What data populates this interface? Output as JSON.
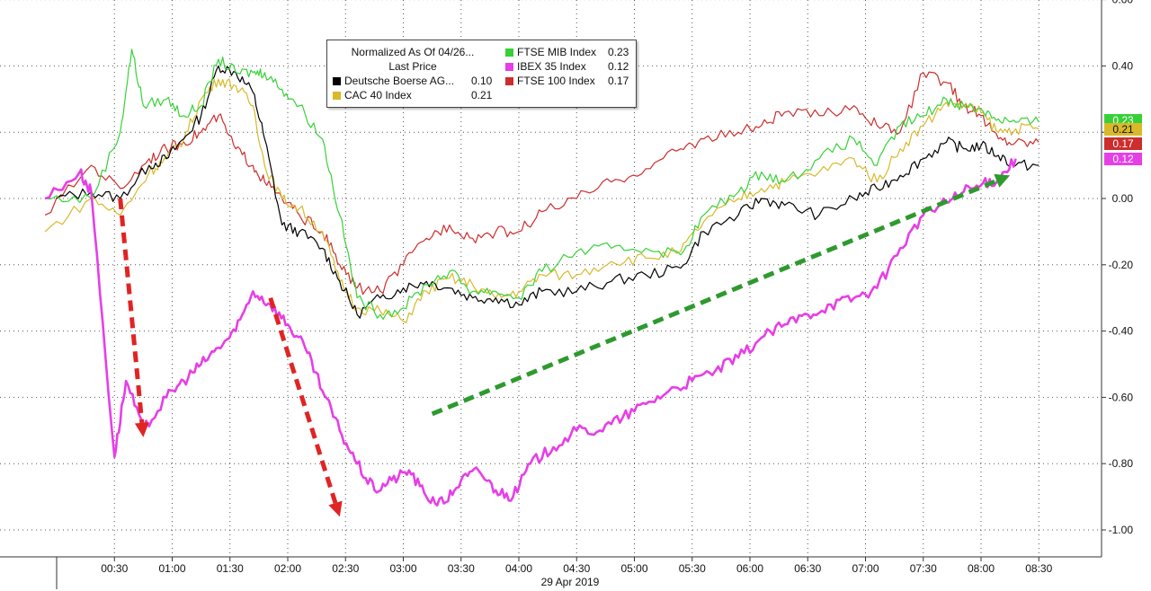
{
  "chart_data": {
    "type": "line",
    "date_label": "29 Apr 2019",
    "x_ticks": [
      "00:30",
      "01:00",
      "01:30",
      "02:00",
      "02:30",
      "03:00",
      "03:30",
      "04:00",
      "04:30",
      "05:00",
      "05:30",
      "06:00",
      "06:30",
      "07:00",
      "07:30",
      "08:00",
      "08:30"
    ],
    "y_ticks": [
      "0.60",
      "0.40",
      "0.20",
      "0.00",
      "-0.20",
      "-0.40",
      "-0.60",
      "-0.80",
      "-1.00"
    ],
    "ylim": [
      -1.1,
      0.6
    ],
    "grid": true,
    "legend": {
      "title": "Normalized As Of 04/26...",
      "subtitle": "Last Price",
      "placement": "top-center"
    },
    "series": [
      {
        "name": "Deutsche Boerse AG...",
        "color": "#000000",
        "last": "0.10",
        "points": [
          [
            0,
            0.0
          ],
          [
            0.3,
            0.02
          ],
          [
            0.55,
            0.0
          ],
          [
            0.8,
            0.1
          ],
          [
            0.95,
            0.12
          ],
          [
            1.1,
            0.18
          ],
          [
            1.25,
            0.25
          ],
          [
            1.4,
            0.4
          ],
          [
            1.55,
            0.38
          ],
          [
            1.7,
            0.32
          ],
          [
            1.8,
            0.18
          ],
          [
            1.95,
            -0.08
          ],
          [
            2.1,
            -0.1
          ],
          [
            2.3,
            -0.15
          ],
          [
            2.45,
            -0.25
          ],
          [
            2.6,
            -0.35
          ],
          [
            2.8,
            -0.3
          ],
          [
            3.0,
            -0.27
          ],
          [
            3.2,
            -0.25
          ],
          [
            3.4,
            -0.27
          ],
          [
            3.6,
            -0.3
          ],
          [
            3.8,
            -0.3
          ],
          [
            4.0,
            -0.32
          ],
          [
            4.2,
            -0.28
          ],
          [
            4.5,
            -0.28
          ],
          [
            4.8,
            -0.25
          ],
          [
            5.1,
            -0.23
          ],
          [
            5.4,
            -0.21
          ],
          [
            5.6,
            -0.1
          ],
          [
            5.9,
            -0.05
          ],
          [
            6.1,
            0.0
          ],
          [
            6.3,
            -0.02
          ],
          [
            6.6,
            -0.05
          ],
          [
            6.9,
            0.0
          ],
          [
            7.1,
            0.03
          ],
          [
            7.3,
            0.07
          ],
          [
            7.5,
            0.12
          ],
          [
            7.7,
            0.17
          ],
          [
            7.85,
            0.15
          ],
          [
            8.0,
            0.16
          ],
          [
            8.15,
            0.13
          ],
          [
            8.3,
            0.1
          ],
          [
            8.5,
            0.1
          ]
        ]
      },
      {
        "name": "CAC 40 Index",
        "color": "#d8b92a",
        "last": "0.21",
        "points": [
          [
            -0.1,
            -0.1
          ],
          [
            0.3,
            0.0
          ],
          [
            0.55,
            -0.05
          ],
          [
            0.8,
            0.08
          ],
          [
            0.95,
            0.12
          ],
          [
            1.1,
            0.18
          ],
          [
            1.25,
            0.3
          ],
          [
            1.4,
            0.36
          ],
          [
            1.55,
            0.34
          ],
          [
            1.7,
            0.28
          ],
          [
            1.8,
            0.1
          ],
          [
            1.95,
            0.0
          ],
          [
            2.1,
            -0.03
          ],
          [
            2.3,
            -0.1
          ],
          [
            2.45,
            -0.25
          ],
          [
            2.6,
            -0.33
          ],
          [
            2.8,
            -0.34
          ],
          [
            3.0,
            -0.37
          ],
          [
            3.2,
            -0.28
          ],
          [
            3.4,
            -0.24
          ],
          [
            3.6,
            -0.26
          ],
          [
            3.8,
            -0.3
          ],
          [
            4.0,
            -0.28
          ],
          [
            4.2,
            -0.23
          ],
          [
            4.5,
            -0.23
          ],
          [
            4.8,
            -0.19
          ],
          [
            5.1,
            -0.18
          ],
          [
            5.4,
            -0.16
          ],
          [
            5.6,
            -0.07
          ],
          [
            5.9,
            0.0
          ],
          [
            6.1,
            0.03
          ],
          [
            6.3,
            0.05
          ],
          [
            6.6,
            0.08
          ],
          [
            6.9,
            0.12
          ],
          [
            7.1,
            0.05
          ],
          [
            7.3,
            0.15
          ],
          [
            7.5,
            0.22
          ],
          [
            7.7,
            0.29
          ],
          [
            7.85,
            0.28
          ],
          [
            8.0,
            0.26
          ],
          [
            8.15,
            0.2
          ],
          [
            8.3,
            0.21
          ],
          [
            8.5,
            0.21
          ]
        ]
      },
      {
        "name": "FTSE MIB Index",
        "color": "#37d137",
        "last": "0.23",
        "points": [
          [
            -0.1,
            0.0
          ],
          [
            0.3,
            0.0
          ],
          [
            0.55,
            0.2
          ],
          [
            0.65,
            0.45
          ],
          [
            0.75,
            0.28
          ],
          [
            0.95,
            0.3
          ],
          [
            1.1,
            0.25
          ],
          [
            1.25,
            0.28
          ],
          [
            1.4,
            0.42
          ],
          [
            1.55,
            0.38
          ],
          [
            1.7,
            0.38
          ],
          [
            1.8,
            0.38
          ],
          [
            1.95,
            0.33
          ],
          [
            2.1,
            0.28
          ],
          [
            2.3,
            0.18
          ],
          [
            2.45,
            -0.05
          ],
          [
            2.6,
            -0.3
          ],
          [
            2.8,
            -0.35
          ],
          [
            3.0,
            -0.33
          ],
          [
            3.2,
            -0.26
          ],
          [
            3.4,
            -0.22
          ],
          [
            3.6,
            -0.28
          ],
          [
            3.8,
            -0.28
          ],
          [
            4.0,
            -0.3
          ],
          [
            4.2,
            -0.22
          ],
          [
            4.5,
            -0.16
          ],
          [
            4.8,
            -0.15
          ],
          [
            5.1,
            -0.15
          ],
          [
            5.4,
            -0.17
          ],
          [
            5.6,
            -0.05
          ],
          [
            5.9,
            0.02
          ],
          [
            6.1,
            0.08
          ],
          [
            6.3,
            0.05
          ],
          [
            6.6,
            0.12
          ],
          [
            6.9,
            0.18
          ],
          [
            7.1,
            0.1
          ],
          [
            7.3,
            0.22
          ],
          [
            7.5,
            0.25
          ],
          [
            7.7,
            0.3
          ],
          [
            7.85,
            0.28
          ],
          [
            8.0,
            0.27
          ],
          [
            8.15,
            0.24
          ],
          [
            8.3,
            0.23
          ],
          [
            8.5,
            0.23
          ]
        ]
      },
      {
        "name": "IBEX 35 Index",
        "color": "#e63fe6",
        "last": "0.12",
        "points": [
          [
            -0.1,
            0.0
          ],
          [
            0.2,
            0.08
          ],
          [
            0.3,
            0.02
          ],
          [
            0.5,
            -0.78
          ],
          [
            0.6,
            -0.55
          ],
          [
            0.75,
            -0.7
          ],
          [
            0.95,
            -0.6
          ],
          [
            1.1,
            -0.55
          ],
          [
            1.25,
            -0.5
          ],
          [
            1.4,
            -0.45
          ],
          [
            1.55,
            -0.4
          ],
          [
            1.7,
            -0.28
          ],
          [
            1.85,
            -0.32
          ],
          [
            2.0,
            -0.38
          ],
          [
            2.15,
            -0.45
          ],
          [
            2.3,
            -0.58
          ],
          [
            2.45,
            -0.7
          ],
          [
            2.6,
            -0.8
          ],
          [
            2.75,
            -0.88
          ],
          [
            2.9,
            -0.85
          ],
          [
            3.05,
            -0.82
          ],
          [
            3.2,
            -0.9
          ],
          [
            3.35,
            -0.92
          ],
          [
            3.5,
            -0.85
          ],
          [
            3.65,
            -0.82
          ],
          [
            3.8,
            -0.88
          ],
          [
            3.95,
            -0.9
          ],
          [
            4.1,
            -0.8
          ],
          [
            4.3,
            -0.75
          ],
          [
            4.5,
            -0.7
          ],
          [
            4.7,
            -0.7
          ],
          [
            4.9,
            -0.66
          ],
          [
            5.1,
            -0.62
          ],
          [
            5.3,
            -0.58
          ],
          [
            5.5,
            -0.55
          ],
          [
            5.7,
            -0.52
          ],
          [
            5.9,
            -0.48
          ],
          [
            6.1,
            -0.42
          ],
          [
            6.3,
            -0.38
          ],
          [
            6.5,
            -0.35
          ],
          [
            6.7,
            -0.32
          ],
          [
            6.9,
            -0.3
          ],
          [
            7.1,
            -0.27
          ],
          [
            7.3,
            -0.15
          ],
          [
            7.5,
            -0.05
          ],
          [
            7.7,
            -0.01
          ],
          [
            7.85,
            0.02
          ],
          [
            8.0,
            0.04
          ],
          [
            8.15,
            0.06
          ],
          [
            8.3,
            0.12
          ]
        ]
      },
      {
        "name": "FTSE 100 Index",
        "color": "#cc2d2d",
        "last": "0.17",
        "points": [
          [
            -0.1,
            -0.05
          ],
          [
            0.3,
            0.1
          ],
          [
            0.55,
            0.03
          ],
          [
            0.8,
            0.12
          ],
          [
            0.95,
            0.15
          ],
          [
            1.1,
            0.17
          ],
          [
            1.25,
            0.2
          ],
          [
            1.4,
            0.25
          ],
          [
            1.55,
            0.15
          ],
          [
            1.7,
            0.1
          ],
          [
            1.8,
            0.05
          ],
          [
            1.95,
            0.0
          ],
          [
            2.1,
            -0.05
          ],
          [
            2.3,
            -0.1
          ],
          [
            2.45,
            -0.2
          ],
          [
            2.6,
            -0.27
          ],
          [
            2.8,
            -0.28
          ],
          [
            3.0,
            -0.2
          ],
          [
            3.2,
            -0.12
          ],
          [
            3.4,
            -0.08
          ],
          [
            3.6,
            -0.12
          ],
          [
            3.8,
            -0.1
          ],
          [
            4.0,
            -0.1
          ],
          [
            4.2,
            -0.04
          ],
          [
            4.5,
            0.0
          ],
          [
            4.8,
            0.05
          ],
          [
            5.1,
            0.09
          ],
          [
            5.4,
            0.15
          ],
          [
            5.6,
            0.18
          ],
          [
            5.9,
            0.2
          ],
          [
            6.1,
            0.22
          ],
          [
            6.3,
            0.26
          ],
          [
            6.6,
            0.25
          ],
          [
            6.9,
            0.28
          ],
          [
            7.1,
            0.22
          ],
          [
            7.3,
            0.2
          ],
          [
            7.5,
            0.38
          ],
          [
            7.7,
            0.35
          ],
          [
            7.85,
            0.28
          ],
          [
            8.0,
            0.25
          ],
          [
            8.15,
            0.18
          ],
          [
            8.3,
            0.17
          ],
          [
            8.5,
            0.17
          ]
        ]
      }
    ],
    "annotations": [
      {
        "type": "arrow",
        "color": "#e02424",
        "from": [
          0.55,
          0.0
        ],
        "to": [
          0.75,
          -0.72
        ]
      },
      {
        "type": "arrow",
        "color": "#e02424",
        "from": [
          1.85,
          -0.3
        ],
        "to": [
          2.45,
          -0.96
        ]
      },
      {
        "type": "arrow",
        "color": "#2e9a2e",
        "from": [
          3.25,
          -0.65
        ],
        "to": [
          8.25,
          0.07
        ]
      }
    ]
  }
}
